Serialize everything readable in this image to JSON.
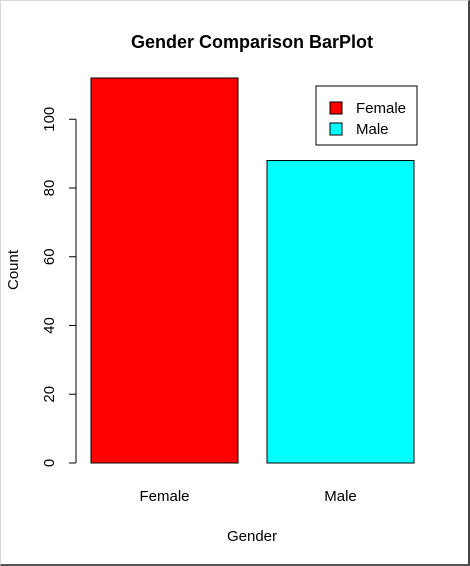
{
  "chart_data": {
    "type": "bar",
    "title": "Gender Comparison BarPlot",
    "xlabel": "Gender",
    "ylabel": "Count",
    "categories": [
      "Female",
      "Male"
    ],
    "values": [
      112,
      88
    ],
    "colors": [
      "#ff0000",
      "#00ffff"
    ],
    "ylim": [
      0,
      112
    ],
    "yticks": [
      0,
      20,
      40,
      60,
      80,
      100
    ],
    "grid": false,
    "legend": {
      "placement": "top-right",
      "entries": [
        {
          "label": "Female",
          "color": "#ff0000"
        },
        {
          "label": "Male",
          "color": "#00ffff"
        }
      ]
    }
  }
}
